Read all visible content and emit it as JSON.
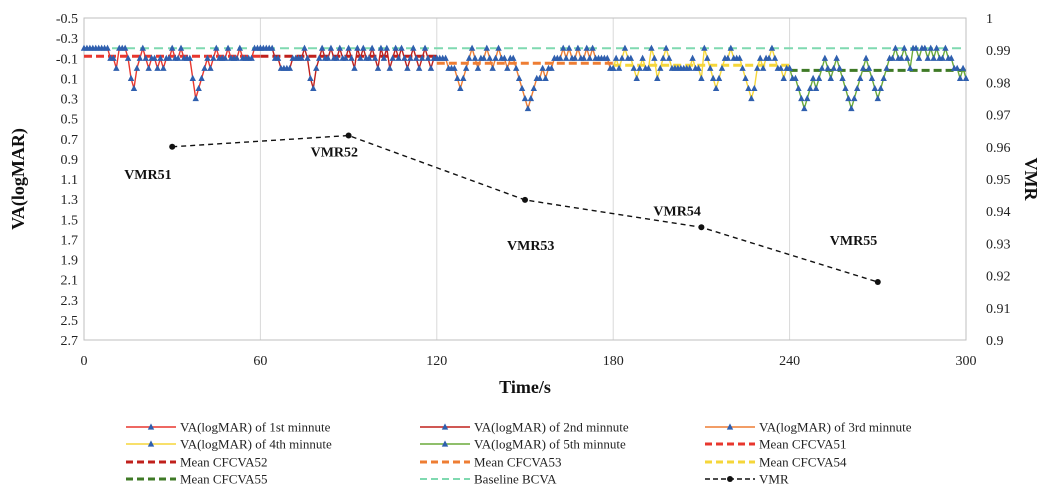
{
  "chart_data": {
    "type": "line",
    "title": "",
    "xlabel": "Time/s",
    "ylabel": "VA(logMAR)",
    "y2label": "VMR",
    "xlim": [
      0,
      300
    ],
    "ylim": [
      2.7,
      -0.5
    ],
    "y2lim": [
      0.9,
      1.0
    ],
    "x_ticks": [
      "0",
      "60",
      "120",
      "180",
      "240",
      "300"
    ],
    "y_ticks": [
      "-0.5",
      "-0.3",
      "-0.1",
      "0.1",
      "0.3",
      "0.5",
      "0.7",
      "0.9",
      "1.1",
      "1.3",
      "1.5",
      "1.7",
      "1.9",
      "2.1",
      "2.3",
      "2.5",
      "2.7"
    ],
    "y2_ticks": [
      "0.9",
      "0.91",
      "0.92",
      "0.93",
      "0.94",
      "0.95",
      "0.96",
      "0.97",
      "0.98",
      "0.99",
      "1"
    ],
    "grid": "vertical",
    "legend_position": "bottom",
    "va_series": [
      {
        "name": "VA(logMAR) of 1st minnute",
        "color": "#e8372e",
        "x": [
          0,
          1,
          2,
          3,
          4,
          5,
          6,
          7,
          8,
          9,
          10,
          11,
          12,
          13,
          14,
          15,
          16,
          17,
          18,
          19,
          20,
          21,
          22,
          23,
          24,
          25,
          26,
          27,
          28,
          29,
          30,
          31,
          32,
          33,
          34,
          35,
          36,
          37,
          38,
          39,
          40,
          41,
          42,
          43,
          44,
          45,
          46,
          47,
          48,
          49,
          50,
          51,
          52,
          53,
          54,
          55,
          56,
          57,
          58,
          59,
          60
        ],
        "y": [
          -0.2,
          -0.2,
          -0.2,
          -0.2,
          -0.2,
          -0.2,
          -0.2,
          -0.2,
          -0.2,
          -0.1,
          -0.1,
          0,
          -0.2,
          -0.2,
          -0.2,
          -0.1,
          0.1,
          0.2,
          0,
          -0.1,
          -0.2,
          -0.1,
          0,
          -0.1,
          -0.1,
          0,
          -0.1,
          0,
          -0.1,
          -0.1,
          -0.2,
          -0.1,
          -0.1,
          -0.2,
          -0.1,
          -0.1,
          -0.1,
          0.1,
          0.3,
          0.2,
          0.1,
          0,
          -0.1,
          0,
          -0.1,
          -0.2,
          -0.1,
          -0.1,
          -0.1,
          -0.2,
          -0.1,
          -0.1,
          -0.1,
          -0.2,
          -0.1,
          -0.1,
          -0.1,
          -0.1,
          -0.2,
          -0.2,
          -0.2
        ]
      },
      {
        "name": "VA(logMAR) of 2nd minnute",
        "color": "#c0201c",
        "x": [
          60,
          61,
          62,
          63,
          64,
          65,
          66,
          67,
          68,
          69,
          70,
          71,
          72,
          73,
          74,
          75,
          76,
          77,
          78,
          79,
          80,
          81,
          82,
          83,
          84,
          85,
          86,
          87,
          88,
          89,
          90,
          91,
          92,
          93,
          94,
          95,
          96,
          97,
          98,
          99,
          100,
          101,
          102,
          103,
          104,
          105,
          106,
          107,
          108,
          109,
          110,
          111,
          112,
          113,
          114,
          115,
          116,
          117,
          118,
          119,
          120
        ],
        "y": [
          -0.2,
          -0.2,
          -0.2,
          -0.2,
          -0.2,
          -0.1,
          -0.1,
          0,
          0,
          0,
          0,
          -0.1,
          -0.1,
          -0.1,
          -0.1,
          -0.2,
          -0.1,
          0.1,
          0.2,
          0,
          -0.1,
          -0.2,
          -0.1,
          -0.1,
          -0.2,
          -0.1,
          -0.1,
          -0.2,
          -0.1,
          -0.1,
          -0.2,
          -0.1,
          0,
          -0.2,
          -0.1,
          -0.2,
          -0.1,
          -0.1,
          -0.2,
          -0.1,
          0,
          -0.2,
          -0.1,
          -0.2,
          0,
          -0.1,
          -0.2,
          -0.1,
          -0.2,
          -0.1,
          0,
          -0.1,
          -0.2,
          -0.1,
          0,
          -0.1,
          -0.2,
          -0.1,
          0,
          -0.1,
          -0.1
        ]
      },
      {
        "name": "VA(logMAR) of 3rd minnute",
        "color": "#ee7d33",
        "x": [
          120,
          121,
          122,
          123,
          124,
          125,
          126,
          127,
          128,
          129,
          130,
          131,
          132,
          133,
          134,
          135,
          136,
          137,
          138,
          139,
          140,
          141,
          142,
          143,
          144,
          145,
          146,
          147,
          148,
          149,
          150,
          151,
          152,
          153,
          154,
          155,
          156,
          157,
          158,
          159,
          160,
          161,
          162,
          163,
          164,
          165,
          166,
          167,
          168,
          169,
          170,
          171,
          172,
          173,
          174,
          175,
          176,
          177,
          178,
          179,
          180
        ],
        "y": [
          -0.1,
          -0.1,
          -0.1,
          -0.1,
          0,
          0,
          0,
          0.1,
          0.2,
          0.1,
          0,
          -0.1,
          -0.2,
          -0.1,
          0,
          -0.1,
          -0.1,
          -0.2,
          -0.1,
          0,
          -0.1,
          -0.2,
          -0.1,
          -0.1,
          0,
          -0.1,
          -0.1,
          0,
          0.1,
          0.2,
          0.3,
          0.4,
          0.3,
          0.2,
          0.1,
          0.1,
          0,
          0.1,
          0,
          0,
          -0.1,
          -0.1,
          -0.1,
          -0.2,
          -0.1,
          -0.2,
          -0.1,
          -0.1,
          -0.2,
          -0.1,
          -0.1,
          -0.2,
          -0.1,
          -0.2,
          -0.1,
          -0.1,
          -0.1,
          -0.1,
          -0.1,
          0,
          0
        ]
      },
      {
        "name": "VA(logMAR) of 4th minnute",
        "color": "#f5d63a",
        "x": [
          180,
          181,
          182,
          183,
          184,
          185,
          186,
          187,
          188,
          189,
          190,
          191,
          192,
          193,
          194,
          195,
          196,
          197,
          198,
          199,
          200,
          201,
          202,
          203,
          204,
          205,
          206,
          207,
          208,
          209,
          210,
          211,
          212,
          213,
          214,
          215,
          216,
          217,
          218,
          219,
          220,
          221,
          222,
          223,
          224,
          225,
          226,
          227,
          228,
          229,
          230,
          231,
          232,
          233,
          234,
          235,
          236,
          237,
          238,
          239,
          240
        ],
        "y": [
          0,
          -0.1,
          0,
          -0.1,
          -0.2,
          -0.1,
          -0.1,
          0,
          0.1,
          0,
          -0.1,
          0,
          0,
          -0.2,
          -0.1,
          0.1,
          0,
          -0.1,
          -0.2,
          -0.1,
          0,
          0,
          0,
          0,
          0,
          0,
          0,
          -0.1,
          0,
          0,
          0.1,
          -0.2,
          -0.1,
          0,
          0.1,
          0.2,
          0.1,
          0,
          -0.1,
          -0.1,
          -0.2,
          -0.1,
          -0.1,
          -0.1,
          0,
          0.1,
          0.2,
          0.3,
          0.2,
          0,
          -0.1,
          0,
          -0.1,
          -0.1,
          -0.2,
          -0.1,
          0,
          0,
          0.1,
          0,
          0
        ]
      },
      {
        "name": "VA(logMAR) of 5th minnute",
        "color": "#6aaa3a",
        "x": [
          240,
          241,
          242,
          243,
          244,
          245,
          246,
          247,
          248,
          249,
          250,
          251,
          252,
          253,
          254,
          255,
          256,
          257,
          258,
          259,
          260,
          261,
          262,
          263,
          264,
          265,
          266,
          267,
          268,
          269,
          270,
          271,
          272,
          273,
          274,
          275,
          276,
          277,
          278,
          279,
          280,
          281,
          282,
          283,
          284,
          285,
          286,
          287,
          288,
          289,
          290,
          291,
          292,
          293,
          294,
          295,
          296,
          297,
          298,
          299,
          300
        ],
        "y": [
          0,
          0.1,
          0.1,
          0.2,
          0.3,
          0.4,
          0.3,
          0.2,
          0.1,
          0.2,
          0.1,
          0,
          -0.1,
          0,
          0.1,
          0,
          -0.1,
          0,
          0.1,
          0.2,
          0.3,
          0.4,
          0.3,
          0.2,
          0.1,
          0,
          -0.1,
          0,
          0.1,
          0.2,
          0.3,
          0.2,
          0.1,
          0,
          -0.1,
          -0.1,
          -0.2,
          -0.1,
          -0.1,
          -0.2,
          -0.1,
          0,
          -0.2,
          -0.2,
          -0.1,
          -0.2,
          -0.2,
          -0.1,
          -0.2,
          -0.1,
          -0.2,
          -0.1,
          -0.1,
          -0.2,
          -0.1,
          -0.1,
          0,
          0,
          0.1,
          0,
          0.1
        ]
      }
    ],
    "mean_series": [
      {
        "name": "Mean CFCVA51",
        "color": "#e8372e",
        "x": [
          0,
          60
        ],
        "y": -0.12
      },
      {
        "name": "Mean CFCVA52",
        "color": "#c0201c",
        "x": [
          60,
          120
        ],
        "y": -0.12
      },
      {
        "name": "Mean CFCVA53",
        "color": "#ee7d33",
        "x": [
          120,
          180
        ],
        "y": -0.05
      },
      {
        "name": "Mean CFCVA54",
        "color": "#f5d63a",
        "x": [
          180,
          240
        ],
        "y": -0.03
      },
      {
        "name": "Mean CFCVA55",
        "color": "#3f7a26",
        "x": [
          240,
          300
        ],
        "y": 0.02
      }
    ],
    "baseline_series": {
      "name": "Baseline BCVA",
      "color": "#7fd9b0",
      "y": -0.2
    },
    "vmr_series": {
      "name": "VMR",
      "color": "#111111",
      "x": [
        30,
        90,
        150,
        210,
        270
      ],
      "y": [
        0.96,
        0.9635,
        0.9435,
        0.935,
        0.918
      ],
      "labels": [
        "VMR51",
        "VMR52",
        "VMR53",
        "VMR54",
        "VMR55"
      ]
    },
    "legend": [
      {
        "label": "VA(logMAR) of 1st minnute",
        "color": "#e8372e",
        "kind": "marker-line"
      },
      {
        "label": "VA(logMAR) of 2nd minnute",
        "color": "#c0201c",
        "kind": "marker-line"
      },
      {
        "label": "VA(logMAR) of 3rd minnute",
        "color": "#ee7d33",
        "kind": "marker-line"
      },
      {
        "label": "VA(logMAR) of 4th minnute",
        "color": "#f5d63a",
        "kind": "marker-line"
      },
      {
        "label": "VA(logMAR) of 5th minnute",
        "color": "#6aaa3a",
        "kind": "marker-line"
      },
      {
        "label": "Mean CFCVA51",
        "color": "#e8372e",
        "kind": "dash-bold"
      },
      {
        "label": "Mean CFCVA52",
        "color": "#c0201c",
        "kind": "dash-bold"
      },
      {
        "label": "Mean CFCVA53",
        "color": "#ee7d33",
        "kind": "dash-bold"
      },
      {
        "label": "Mean CFCVA54",
        "color": "#f5d63a",
        "kind": "dash-bold"
      },
      {
        "label": "Mean CFCVA55",
        "color": "#3f7a26",
        "kind": "dash-bold"
      },
      {
        "label": "Baseline BCVA",
        "color": "#7fd9b0",
        "kind": "dash"
      },
      {
        "label": "VMR",
        "color": "#111111",
        "kind": "dash-dot"
      }
    ],
    "marker_color": "#2f5fae"
  }
}
